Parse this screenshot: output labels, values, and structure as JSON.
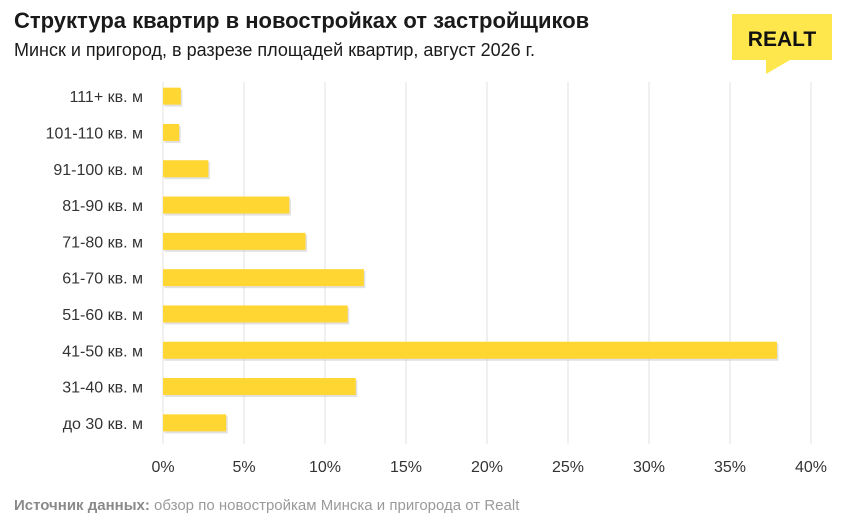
{
  "title": "Структура квартир в новостройках от застройщиков",
  "subtitle": "Минск и пригород, в разрезе площадей квартир, август 2026 г.",
  "brand": {
    "logo_text": "REALT",
    "logo_color": "#FDE74C"
  },
  "source": {
    "label": "Источник данных:",
    "text": "обзор по новостройкам Минска и пригорода от Realt"
  },
  "colors": {
    "bar": "#FFD632",
    "bar_shadow": "#C9C9C9",
    "grid": "#E2E2E2"
  },
  "chart_data": {
    "type": "bar",
    "orientation": "horizontal",
    "categories": [
      "111+ кв. м",
      "101-110 кв. м",
      "91-100 кв. м",
      "81-90 кв. м",
      "71-80 кв. м",
      "61-70 кв. м",
      "51-60 кв. м",
      "41-50 кв. м",
      "31-40 кв. м",
      "до 30 кв. м"
    ],
    "values": [
      1.1,
      1.0,
      2.8,
      7.8,
      8.8,
      12.4,
      11.4,
      37.9,
      11.9,
      3.9
    ],
    "xlim": [
      0,
      40
    ],
    "xticks": [
      0,
      5,
      10,
      15,
      20,
      25,
      30,
      35,
      40
    ],
    "xtick_labels": [
      "0%",
      "5%",
      "10%",
      "15%",
      "20%",
      "25%",
      "30%",
      "35%",
      "40%"
    ],
    "grid": "vertical"
  }
}
